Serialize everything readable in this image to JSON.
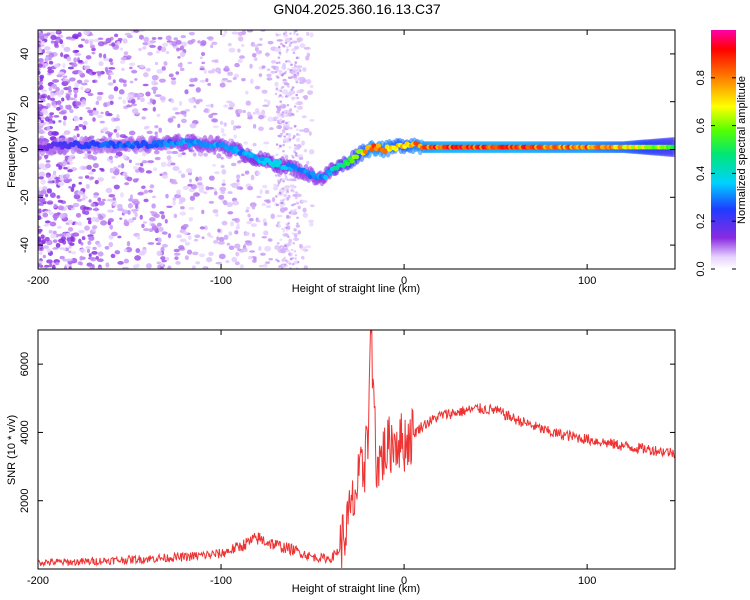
{
  "title": "GN04.2025.360.16.13.C37",
  "chart_data": [
    {
      "type": "heatmap",
      "name": "spectrogram",
      "xlabel": "Height of straight line (km)",
      "ylabel": "Frequency (Hz)",
      "xlim": [
        -200,
        148
      ],
      "ylim": [
        -50,
        50
      ],
      "xticks": [
        -200,
        -100,
        0,
        100
      ],
      "xtick_labels": [
        "-200",
        "-100",
        "0",
        "100"
      ],
      "yticks": [
        -40,
        -20,
        0,
        20,
        40
      ],
      "ytick_labels": [
        "-40",
        "-20",
        "0",
        "20",
        "40"
      ],
      "colorbar": {
        "label": "Normalized spectral amplitude",
        "range": [
          0,
          1
        ],
        "ticks": [
          0,
          0.2,
          0.4,
          0.6,
          0.8
        ],
        "tick_labels": [
          "0.0",
          "0.2",
          "0.4",
          "0.6",
          "0.8"
        ]
      },
      "ridge": {
        "x": [
          -200,
          -180,
          -160,
          -140,
          -120,
          -100,
          -90,
          -80,
          -70,
          -60,
          -50,
          -45,
          -40,
          -35,
          -30,
          -25,
          -20,
          -15,
          -10,
          -5,
          0,
          5,
          10,
          20,
          40,
          60,
          80,
          100,
          120,
          148
        ],
        "freq": [
          1,
          2,
          2,
          2,
          3,
          2,
          -1,
          -4,
          -6,
          -8,
          -11,
          -12,
          -9,
          -7,
          -5,
          -2,
          0,
          1,
          0,
          1,
          2,
          2,
          1,
          1,
          1,
          1,
          1,
          1,
          1,
          1
        ],
        "amplitude": [
          0.15,
          0.25,
          0.3,
          0.3,
          0.35,
          0.35,
          0.35,
          0.4,
          0.4,
          0.35,
          0.35,
          0.35,
          0.4,
          0.5,
          0.6,
          0.7,
          0.85,
          0.9,
          0.85,
          0.8,
          0.8,
          0.85,
          0.9,
          0.95,
          0.95,
          0.95,
          0.9,
          0.9,
          0.8,
          0.6
        ]
      }
    },
    {
      "type": "line",
      "name": "snr",
      "xlabel": "Height of straight line (km)",
      "ylabel": "SNR (10 * v/v)",
      "xlim": [
        -200,
        148
      ],
      "ylim": [
        0,
        7000
      ],
      "xticks": [
        -200,
        -100,
        0,
        100
      ],
      "xtick_labels": [
        "-200",
        "-100",
        "0",
        "100"
      ],
      "yticks": [
        2000,
        4000,
        6000
      ],
      "ytick_labels": [
        "2000",
        "4000",
        "6000"
      ],
      "color": "#ee3333",
      "series": [
        {
          "name": "SNR",
          "x": [
            -200,
            -180,
            -160,
            -140,
            -120,
            -100,
            -90,
            -80,
            -70,
            -60,
            -50,
            -40,
            -35,
            -30,
            -25,
            -20,
            -18,
            -15,
            -10,
            -5,
            0,
            10,
            20,
            30,
            40,
            50,
            60,
            80,
            100,
            120,
            148
          ],
          "y": [
            200,
            200,
            250,
            300,
            350,
            450,
            650,
            900,
            700,
            550,
            350,
            300,
            600,
            1500,
            2500,
            3300,
            6900,
            3000,
            3500,
            3800,
            3700,
            4200,
            4500,
            4600,
            4700,
            4650,
            4400,
            4000,
            3800,
            3600,
            3400
          ]
        }
      ]
    }
  ]
}
